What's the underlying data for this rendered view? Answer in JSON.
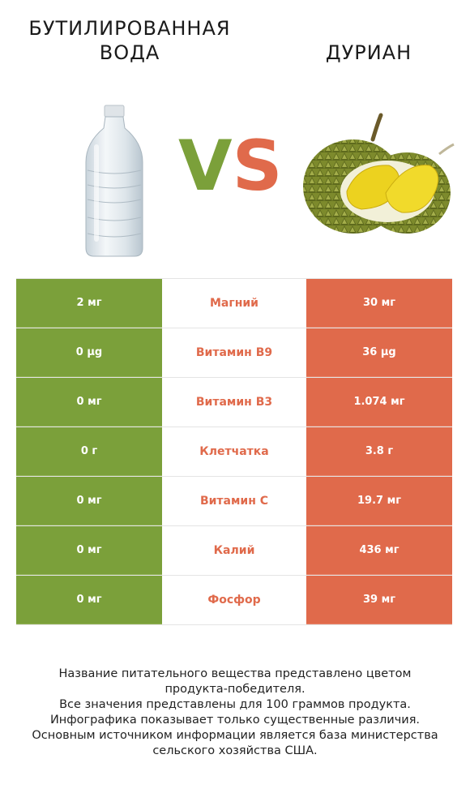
{
  "header": {
    "left_title_line1": "БУТИЛИРОВАННАЯ",
    "left_title_line2": "ВОДА",
    "right_title": "ДУРИАН",
    "vs_v": "V",
    "vs_s": "S"
  },
  "colors": {
    "left_accent": "#7ba03a",
    "right_accent": "#e06a4b"
  },
  "rows": [
    {
      "left": "2 мг",
      "label": "Магний",
      "right": "30 мг"
    },
    {
      "left": "0 µg",
      "label": "Витамин B9",
      "right": "36 µg"
    },
    {
      "left": "0 мг",
      "label": "Витамин B3",
      "right": "1.074 мг"
    },
    {
      "left": "0 г",
      "label": "Клетчатка",
      "right": "3.8 г"
    },
    {
      "left": "0 мг",
      "label": "Витамин C",
      "right": "19.7 мг"
    },
    {
      "left": "0 мг",
      "label": "Калий",
      "right": "436 мг"
    },
    {
      "left": "0 мг",
      "label": "Фосфор",
      "right": "39 мг"
    }
  ],
  "footer": {
    "line1": "Название питательного вещества представлено цветом",
    "line2": "продукта-победителя.",
    "line3": "Все значения представлены для 100 граммов продукта.",
    "line4": "Инфографика показывает только существенные различия.",
    "line5": "Основным источником информации является база министерства",
    "line6": "сельского хозяйства США."
  },
  "icons": {
    "left_image": "water-bottle",
    "right_image": "durian-fruit"
  }
}
